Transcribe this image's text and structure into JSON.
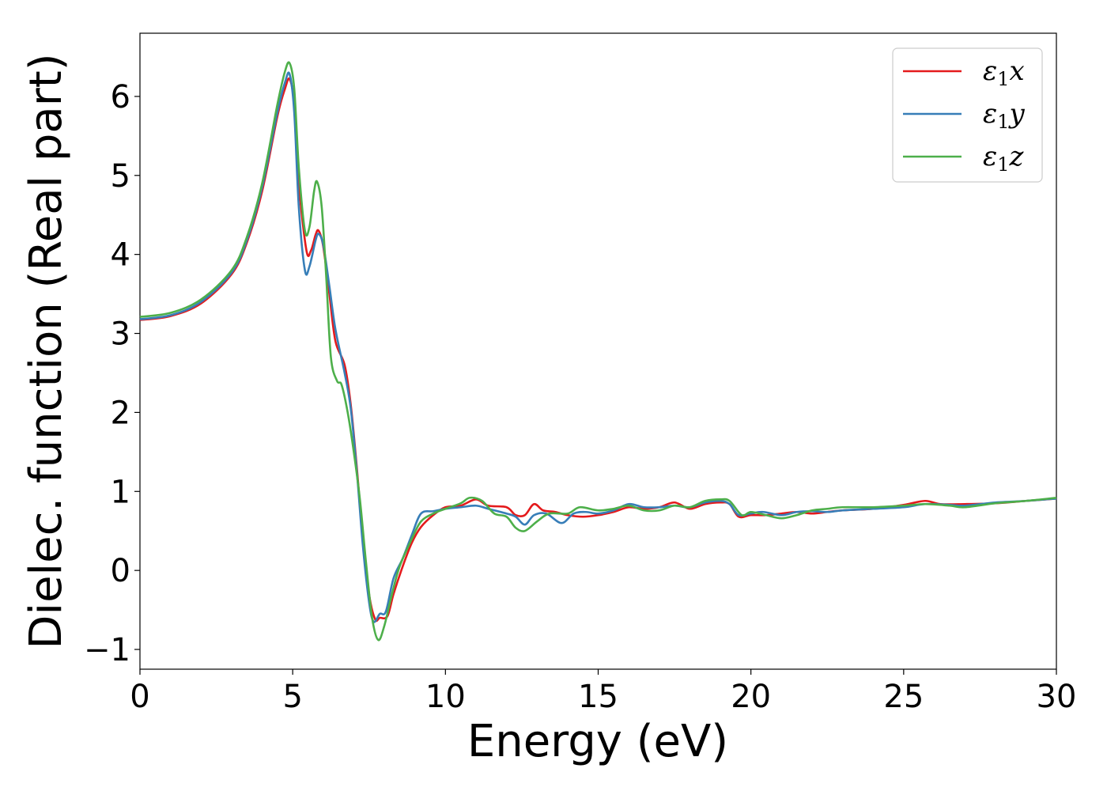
{
  "chart_data": {
    "type": "line",
    "title": "",
    "xlabel": "Energy (eV)",
    "ylabel": "Dielec. function (Real part)",
    "xlim": [
      0,
      30
    ],
    "ylim": [
      -1.25,
      6.8
    ],
    "xticks": [
      0,
      5,
      10,
      15,
      20,
      25,
      30
    ],
    "xtick_labels": [
      "0",
      "5",
      "10",
      "15",
      "20",
      "25",
      "30"
    ],
    "yticks": [
      -1,
      0,
      1,
      2,
      3,
      4,
      5,
      6
    ],
    "ytick_labels": [
      "−1",
      "0",
      "1",
      "2",
      "3",
      "4",
      "5",
      "6"
    ],
    "grid": false,
    "legend_position": "top-right",
    "series": [
      {
        "name": "ε1x",
        "legend_main": "ε",
        "legend_sub": "1",
        "legend_suffix": "x",
        "color": "#e41a1c",
        "points": [
          [
            0,
            3.17
          ],
          [
            1,
            3.22
          ],
          [
            2,
            3.38
          ],
          [
            3,
            3.75
          ],
          [
            3.5,
            4.15
          ],
          [
            4,
            4.8
          ],
          [
            4.5,
            5.75
          ],
          [
            4.75,
            6.1
          ],
          [
            4.9,
            6.22
          ],
          [
            5.05,
            5.9
          ],
          [
            5.2,
            4.9
          ],
          [
            5.45,
            4.05
          ],
          [
            5.6,
            4.05
          ],
          [
            5.75,
            4.25
          ],
          [
            5.85,
            4.3
          ],
          [
            6.0,
            4.1
          ],
          [
            6.2,
            3.5
          ],
          [
            6.4,
            2.9
          ],
          [
            6.7,
            2.6
          ],
          [
            6.9,
            2.1
          ],
          [
            7.1,
            1.3
          ],
          [
            7.3,
            0.4
          ],
          [
            7.5,
            -0.3
          ],
          [
            7.7,
            -0.62
          ],
          [
            7.85,
            -0.6
          ],
          [
            8.1,
            -0.58
          ],
          [
            8.3,
            -0.3
          ],
          [
            8.6,
            0.05
          ],
          [
            8.9,
            0.35
          ],
          [
            9.2,
            0.55
          ],
          [
            9.6,
            0.7
          ],
          [
            10.0,
            0.8
          ],
          [
            10.5,
            0.82
          ],
          [
            11.0,
            0.9
          ],
          [
            11.4,
            0.82
          ],
          [
            12.0,
            0.8
          ],
          [
            12.3,
            0.7
          ],
          [
            12.6,
            0.7
          ],
          [
            12.9,
            0.84
          ],
          [
            13.2,
            0.76
          ],
          [
            13.6,
            0.74
          ],
          [
            14.0,
            0.7
          ],
          [
            14.5,
            0.68
          ],
          [
            15.0,
            0.7
          ],
          [
            15.5,
            0.74
          ],
          [
            16.0,
            0.8
          ],
          [
            16.5,
            0.78
          ],
          [
            17.0,
            0.8
          ],
          [
            17.5,
            0.86
          ],
          [
            18.0,
            0.78
          ],
          [
            18.5,
            0.84
          ],
          [
            19.0,
            0.86
          ],
          [
            19.3,
            0.84
          ],
          [
            19.6,
            0.68
          ],
          [
            20.0,
            0.7
          ],
          [
            20.5,
            0.7
          ],
          [
            21.0,
            0.72
          ],
          [
            21.5,
            0.74
          ],
          [
            22.0,
            0.72
          ],
          [
            22.5,
            0.74
          ],
          [
            23.0,
            0.76
          ],
          [
            24.0,
            0.78
          ],
          [
            25.0,
            0.83
          ],
          [
            25.7,
            0.88
          ],
          [
            26.2,
            0.84
          ],
          [
            27.0,
            0.84
          ],
          [
            28.0,
            0.85
          ],
          [
            29.0,
            0.88
          ],
          [
            30.0,
            0.91
          ]
        ]
      },
      {
        "name": "ε1y",
        "legend_main": "ε",
        "legend_sub": "1",
        "legend_suffix": "y",
        "color": "#377eb8",
        "points": [
          [
            0,
            3.18
          ],
          [
            1,
            3.23
          ],
          [
            2,
            3.4
          ],
          [
            3,
            3.77
          ],
          [
            3.5,
            4.18
          ],
          [
            4,
            4.85
          ],
          [
            4.5,
            5.8
          ],
          [
            4.75,
            6.18
          ],
          [
            4.9,
            6.28
          ],
          [
            5.05,
            5.8
          ],
          [
            5.2,
            4.6
          ],
          [
            5.4,
            3.8
          ],
          [
            5.55,
            3.85
          ],
          [
            5.75,
            4.18
          ],
          [
            5.85,
            4.26
          ],
          [
            6.0,
            4.12
          ],
          [
            6.2,
            3.6
          ],
          [
            6.4,
            3.05
          ],
          [
            6.7,
            2.5
          ],
          [
            6.9,
            2.05
          ],
          [
            7.1,
            1.25
          ],
          [
            7.3,
            0.3
          ],
          [
            7.5,
            -0.4
          ],
          [
            7.65,
            -0.65
          ],
          [
            7.85,
            -0.55
          ],
          [
            8.05,
            -0.52
          ],
          [
            8.3,
            -0.1
          ],
          [
            8.6,
            0.15
          ],
          [
            8.9,
            0.45
          ],
          [
            9.2,
            0.72
          ],
          [
            9.6,
            0.75
          ],
          [
            10.0,
            0.78
          ],
          [
            10.5,
            0.8
          ],
          [
            11.0,
            0.82
          ],
          [
            11.4,
            0.78
          ],
          [
            12.0,
            0.72
          ],
          [
            12.3,
            0.68
          ],
          [
            12.6,
            0.58
          ],
          [
            12.9,
            0.7
          ],
          [
            13.3,
            0.72
          ],
          [
            13.8,
            0.6
          ],
          [
            14.2,
            0.72
          ],
          [
            14.6,
            0.74
          ],
          [
            15.0,
            0.72
          ],
          [
            15.5,
            0.76
          ],
          [
            16.0,
            0.84
          ],
          [
            16.5,
            0.8
          ],
          [
            17.0,
            0.8
          ],
          [
            17.5,
            0.82
          ],
          [
            18.0,
            0.8
          ],
          [
            18.5,
            0.86
          ],
          [
            19.0,
            0.88
          ],
          [
            19.3,
            0.84
          ],
          [
            19.6,
            0.7
          ],
          [
            20.0,
            0.72
          ],
          [
            20.4,
            0.74
          ],
          [
            21.0,
            0.7
          ],
          [
            21.5,
            0.74
          ],
          [
            22.0,
            0.75
          ],
          [
            22.5,
            0.74
          ],
          [
            23.0,
            0.76
          ],
          [
            24.0,
            0.78
          ],
          [
            25.0,
            0.8
          ],
          [
            25.7,
            0.84
          ],
          [
            26.5,
            0.83
          ],
          [
            27.0,
            0.82
          ],
          [
            28.0,
            0.86
          ],
          [
            29.0,
            0.88
          ],
          [
            30.0,
            0.91
          ]
        ]
      },
      {
        "name": "ε1z",
        "legend_main": "ε",
        "legend_sub": "1",
        "legend_suffix": "z",
        "color": "#4daf4a",
        "points": [
          [
            0,
            3.21
          ],
          [
            1,
            3.26
          ],
          [
            2,
            3.43
          ],
          [
            3,
            3.8
          ],
          [
            3.5,
            4.22
          ],
          [
            4,
            4.9
          ],
          [
            4.5,
            5.9
          ],
          [
            4.75,
            6.32
          ],
          [
            4.9,
            6.42
          ],
          [
            5.05,
            6.1
          ],
          [
            5.2,
            5.1
          ],
          [
            5.4,
            4.3
          ],
          [
            5.55,
            4.35
          ],
          [
            5.7,
            4.8
          ],
          [
            5.8,
            4.92
          ],
          [
            5.95,
            4.6
          ],
          [
            6.1,
            3.7
          ],
          [
            6.25,
            2.7
          ],
          [
            6.45,
            2.4
          ],
          [
            6.6,
            2.35
          ],
          [
            6.8,
            2.0
          ],
          [
            7.0,
            1.5
          ],
          [
            7.2,
            0.9
          ],
          [
            7.4,
            0.1
          ],
          [
            7.6,
            -0.6
          ],
          [
            7.8,
            -0.88
          ],
          [
            8.0,
            -0.7
          ],
          [
            8.25,
            -0.3
          ],
          [
            8.5,
            0.05
          ],
          [
            8.9,
            0.4
          ],
          [
            9.2,
            0.62
          ],
          [
            9.6,
            0.72
          ],
          [
            10.0,
            0.78
          ],
          [
            10.5,
            0.85
          ],
          [
            10.8,
            0.92
          ],
          [
            11.2,
            0.88
          ],
          [
            11.6,
            0.72
          ],
          [
            12.0,
            0.68
          ],
          [
            12.3,
            0.54
          ],
          [
            12.6,
            0.5
          ],
          [
            13.0,
            0.62
          ],
          [
            13.4,
            0.72
          ],
          [
            14.0,
            0.72
          ],
          [
            14.4,
            0.8
          ],
          [
            15.0,
            0.76
          ],
          [
            15.5,
            0.78
          ],
          [
            16.0,
            0.82
          ],
          [
            16.5,
            0.76
          ],
          [
            17.0,
            0.76
          ],
          [
            17.5,
            0.82
          ],
          [
            18.0,
            0.8
          ],
          [
            18.5,
            0.88
          ],
          [
            19.0,
            0.9
          ],
          [
            19.3,
            0.88
          ],
          [
            19.7,
            0.7
          ],
          [
            20.0,
            0.74
          ],
          [
            20.5,
            0.7
          ],
          [
            21.0,
            0.66
          ],
          [
            21.5,
            0.7
          ],
          [
            22.0,
            0.76
          ],
          [
            22.5,
            0.78
          ],
          [
            23.0,
            0.8
          ],
          [
            24.0,
            0.8
          ],
          [
            25.0,
            0.82
          ],
          [
            25.7,
            0.84
          ],
          [
            26.5,
            0.82
          ],
          [
            27.0,
            0.8
          ],
          [
            28.0,
            0.85
          ],
          [
            29.0,
            0.88
          ],
          [
            30.0,
            0.92
          ]
        ]
      }
    ]
  }
}
